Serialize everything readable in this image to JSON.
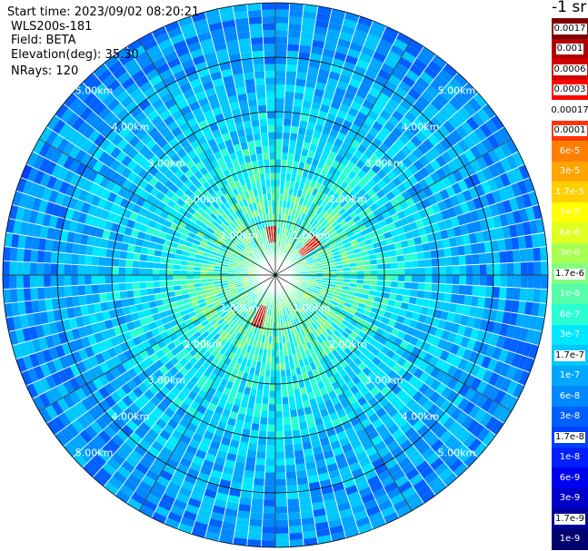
{
  "header": {
    "start_time": "Start time: 2023/09/02 08:20:21",
    "instrument": "WLS200s-181",
    "field": "Field: BETA",
    "elevation": "Elevation(deg): 35.30",
    "nrays": "NRays: 120"
  },
  "colorbar": {
    "units": "-1 sr",
    "levels": [
      {
        "label": "0.0017",
        "color": "#7f0000",
        "boxed": true
      },
      {
        "label": "0.001",
        "color": "#b30000",
        "boxed": true
      },
      {
        "label": "0.0006",
        "color": "#d40000",
        "boxed": true
      },
      {
        "label": "0.0003",
        "color": "#ff0000",
        "boxed": true
      },
      {
        "label": "0.00017",
        "color": "#ffffff",
        "boxed": true
      },
      {
        "label": "0.0001",
        "color": "#ff3300",
        "boxed": true
      },
      {
        "label": "6e-5",
        "color": "#ff7f00",
        "boxed": false
      },
      {
        "label": "3e-5",
        "color": "#ffa500",
        "boxed": false
      },
      {
        "label": "1.7e-5",
        "color": "#ffd000",
        "boxed": false
      },
      {
        "label": "1e-5",
        "color": "#ffff00",
        "boxed": false
      },
      {
        "label": "6e-6",
        "color": "#dfff20",
        "boxed": false
      },
      {
        "label": "3e-6",
        "color": "#a8ff50",
        "boxed": false
      },
      {
        "label": "1.7e-6",
        "color": "#80ff80",
        "boxed": true
      },
      {
        "label": "1e-6",
        "color": "#55ffa8",
        "boxed": false
      },
      {
        "label": "6e-7",
        "color": "#2affd4",
        "boxed": false
      },
      {
        "label": "3e-7",
        "color": "#00e8ff",
        "boxed": false
      },
      {
        "label": "1.7e-7",
        "color": "#00c8ff",
        "boxed": true
      },
      {
        "label": "1e-7",
        "color": "#00a8ff",
        "boxed": false
      },
      {
        "label": "6e-8",
        "color": "#0088ff",
        "boxed": false
      },
      {
        "label": "3e-8",
        "color": "#0060ff",
        "boxed": false
      },
      {
        "label": "1.7e-8",
        "color": "#0040ff",
        "boxed": true
      },
      {
        "label": "1e-8",
        "color": "#0020ff",
        "boxed": false
      },
      {
        "label": "6e-9",
        "color": "#0000f0",
        "boxed": false
      },
      {
        "label": "3e-9",
        "color": "#0000c8",
        "boxed": false
      },
      {
        "label": "1.7e-9",
        "color": "#00009a",
        "boxed": true
      },
      {
        "label": "1e-9",
        "color": "#00006e",
        "boxed": false
      }
    ]
  },
  "chart_data": {
    "type": "heatmap",
    "projection": "polar PPI",
    "field": "BETA",
    "scale": "log",
    "num_rays": 120,
    "ring_ranges_km": [
      1,
      2,
      3,
      4,
      5
    ],
    "range_labels": [
      "1.00km",
      "2.00km",
      "3.00km",
      "4.00km",
      "5.00km"
    ],
    "spoke_directions_deg": [
      0,
      30,
      60,
      90,
      120,
      150,
      180,
      210,
      240,
      270,
      300,
      330
    ],
    "spoke_label_directions_deg": [
      45,
      135,
      225,
      315
    ],
    "value_by_range": [
      {
        "range_km": 0.5,
        "value": 1e-06
      },
      {
        "range_km": 1.5,
        "value": 6e-07
      },
      {
        "range_km": 2.2,
        "value": 3e-07
      },
      {
        "range_km": 3.0,
        "value": 1.7e-07
      },
      {
        "range_km": 4.0,
        "value": 1e-07
      },
      {
        "range_km": 5.0,
        "value": 6e-08
      }
    ],
    "high_return_features": [
      {
        "direction_deg": 355,
        "range_km": [
          0.6,
          0.85
        ],
        "value": 0.0006
      },
      {
        "direction_deg": 50,
        "range_km": [
          0.6,
          1.0
        ],
        "value": 0.0003
      },
      {
        "direction_deg": 200,
        "range_km": [
          0.6,
          1.0
        ],
        "value": 0.001
      }
    ]
  }
}
